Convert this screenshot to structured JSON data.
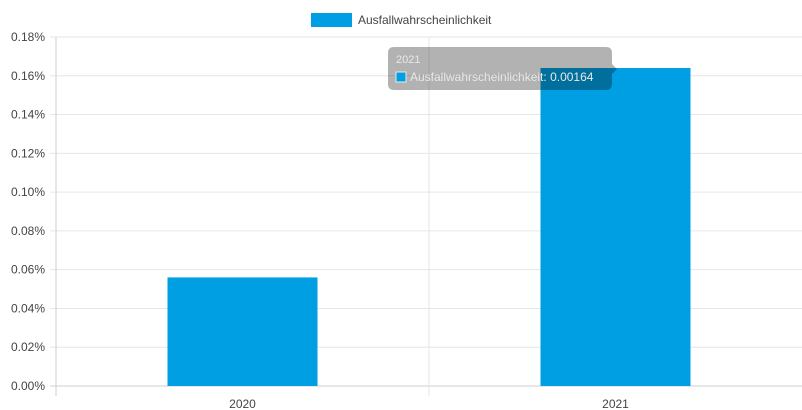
{
  "chart_data": {
    "type": "bar",
    "categories": [
      "2020",
      "2021"
    ],
    "series": [
      {
        "name": "Ausfallwahrscheinlichkeit",
        "values": [
          0.00056,
          0.00164
        ]
      }
    ],
    "y_ticks": [
      "0.00%",
      "0.02%",
      "0.04%",
      "0.06%",
      "0.08%",
      "0.10%",
      "0.12%",
      "0.14%",
      "0.16%",
      "0.18%"
    ],
    "ylim": [
      0,
      0.0018
    ],
    "grid": true,
    "legend_position": "top",
    "bar_color": "#009fe3",
    "tooltip": {
      "title": "2021",
      "label": "Ausfallwahrscheinlichkeit: 0.00164"
    }
  }
}
